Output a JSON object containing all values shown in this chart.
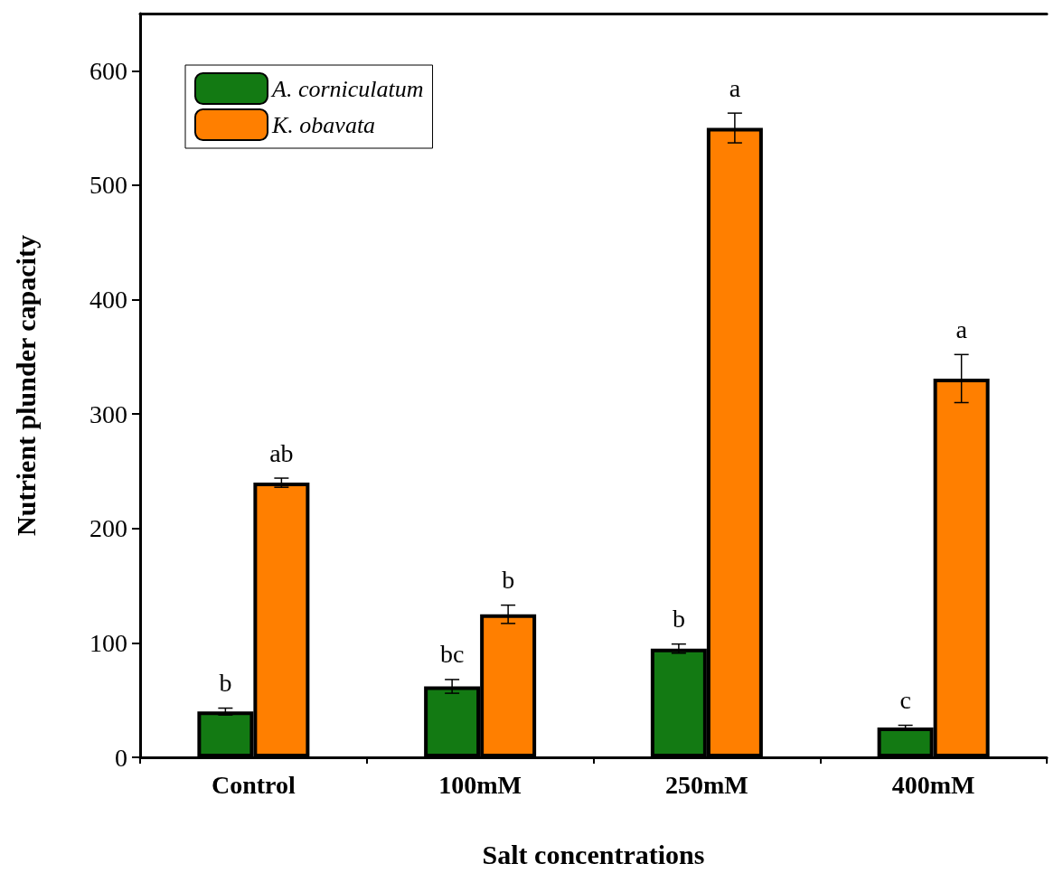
{
  "chart_data": {
    "type": "bar",
    "xlabel": "Salt concentrations",
    "ylabel": "Nutrient plunder capacity",
    "categories": [
      "Control",
      "100mM",
      "250mM",
      "400mM"
    ],
    "series": [
      {
        "name": "A. corniculatum",
        "color": "#137a13",
        "values": [
          40,
          62,
          95,
          26
        ],
        "errors": [
          3,
          6,
          4,
          2
        ],
        "value_labels": [
          "b",
          "bc",
          "b",
          "c"
        ]
      },
      {
        "name": "K. obavata",
        "color": "#ff7f00",
        "values": [
          240,
          125,
          550,
          331
        ],
        "errors": [
          4,
          8,
          13,
          21
        ],
        "value_labels": [
          "ab",
          "b",
          "a",
          "a"
        ]
      }
    ],
    "ylim": [
      0,
      650
    ],
    "yticks": [
      0,
      100,
      200,
      300,
      400,
      500,
      600
    ],
    "grid": false,
    "legend": "top left"
  }
}
